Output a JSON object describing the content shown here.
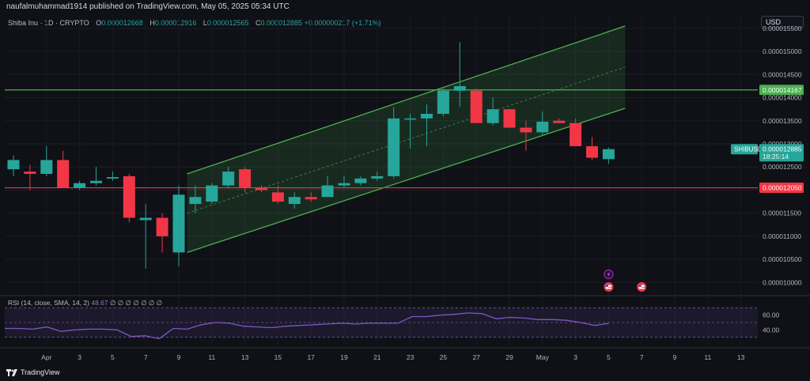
{
  "header": {
    "attribution": "naufalmuhammad1914 published on TradingView.com, May 05, 2025 05:34 UTC"
  },
  "legend": {
    "symbol": "Shiba Inu · 1D · CRYPTO",
    "open_label": "O",
    "open": "0.000012668",
    "high_label": "H",
    "high": "0.000012916",
    "low_label": "L",
    "low": "0.000012565",
    "close_label": "C",
    "close": "0.000012885",
    "change": "+0.000000217 (+1.71%)"
  },
  "currency_button": "USD",
  "rsi": {
    "label": "RSI (14, close, SMA, 14, 2)",
    "value": "48.67",
    "extras": "∅ ∅ ∅ ∅ ∅ ∅ ∅",
    "levels": [
      "60.00",
      "40.00"
    ],
    "values": [
      42,
      42,
      41,
      44,
      38,
      40,
      41,
      41,
      40,
      31,
      32,
      28,
      42,
      41,
      47,
      50,
      49,
      45,
      44,
      43,
      45,
      46,
      47,
      48,
      49,
      48,
      49,
      49,
      49,
      58,
      58,
      60,
      61,
      63,
      62,
      55,
      57,
      56,
      54,
      54,
      53,
      50,
      46,
      48.67
    ]
  },
  "brand": "TradingView",
  "colors": {
    "up": "#26a69a",
    "down": "#f23645",
    "channel": "#4caf50",
    "resistance": "#4caf50",
    "support": "#f23645",
    "rsi_line": "#7e57c2"
  },
  "chart_data": {
    "type": "candlestick",
    "symbol": "SHIBUSD",
    "timeframe": "1D",
    "ylim": [
      9.75e-06,
      1.56e-05
    ],
    "yticks": [
      "0.000015500",
      "0.000015000",
      "0.000014500",
      "0.000014000",
      "0.000013500",
      "0.000013000",
      "0.000012500",
      "0.000012000",
      "0.000011500",
      "0.000011000",
      "0.000010500",
      "0.000010000"
    ],
    "ytick_values": [
      1.55e-05,
      1.5e-05,
      1.45e-05,
      1.4e-05,
      1.35e-05,
      1.3e-05,
      1.25e-05,
      1.2e-05,
      1.15e-05,
      1.1e-05,
      1.05e-05,
      1e-05
    ],
    "x_labels": [
      {
        "i": 2,
        "label": "Apr"
      },
      {
        "i": 4,
        "label": "3"
      },
      {
        "i": 6,
        "label": "5"
      },
      {
        "i": 8,
        "label": "7"
      },
      {
        "i": 10,
        "label": "9"
      },
      {
        "i": 12,
        "label": "11"
      },
      {
        "i": 14,
        "label": "13"
      },
      {
        "i": 16,
        "label": "15"
      },
      {
        "i": 18,
        "label": "17"
      },
      {
        "i": 20,
        "label": "19"
      },
      {
        "i": 22,
        "label": "21"
      },
      {
        "i": 24,
        "label": "23"
      },
      {
        "i": 26,
        "label": "25"
      },
      {
        "i": 28,
        "label": "27"
      },
      {
        "i": 30,
        "label": "29"
      },
      {
        "i": 32,
        "label": "May"
      },
      {
        "i": 34,
        "label": "3"
      },
      {
        "i": 36,
        "label": "5"
      },
      {
        "i": 38,
        "label": "7"
      },
      {
        "i": 40,
        "label": "9"
      },
      {
        "i": 42,
        "label": "11"
      },
      {
        "i": 44,
        "label": "13"
      }
    ],
    "candles": [
      {
        "o": 12.45,
        "h": 12.75,
        "l": 12.3,
        "c": 12.65
      },
      {
        "o": 12.4,
        "h": 12.55,
        "l": 12.0,
        "c": 12.35
      },
      {
        "o": 12.35,
        "h": 12.95,
        "l": 12.3,
        "c": 12.65
      },
      {
        "o": 12.65,
        "h": 12.85,
        "l": 12.05,
        "c": 12.05
      },
      {
        "o": 12.05,
        "h": 12.2,
        "l": 12.0,
        "c": 12.15
      },
      {
        "o": 12.15,
        "h": 12.5,
        "l": 12.1,
        "c": 12.2
      },
      {
        "o": 12.25,
        "h": 12.4,
        "l": 12.2,
        "c": 12.28
      },
      {
        "o": 12.3,
        "h": 12.35,
        "l": 11.3,
        "c": 11.4
      },
      {
        "o": 11.35,
        "h": 11.7,
        "l": 10.3,
        "c": 11.4
      },
      {
        "o": 11.4,
        "h": 11.5,
        "l": 10.65,
        "c": 11.0
      },
      {
        "o": 10.65,
        "h": 12.1,
        "l": 10.35,
        "c": 11.9
      },
      {
        "o": 11.7,
        "h": 12.1,
        "l": 11.5,
        "c": 11.85
      },
      {
        "o": 11.75,
        "h": 12.15,
        "l": 11.7,
        "c": 12.1
      },
      {
        "o": 12.1,
        "h": 12.5,
        "l": 12.05,
        "c": 12.4
      },
      {
        "o": 12.45,
        "h": 12.5,
        "l": 11.95,
        "c": 12.05
      },
      {
        "o": 12.05,
        "h": 12.1,
        "l": 11.95,
        "c": 12.0
      },
      {
        "o": 11.95,
        "h": 12.1,
        "l": 11.7,
        "c": 11.75
      },
      {
        "o": 11.7,
        "h": 11.95,
        "l": 11.6,
        "c": 11.85
      },
      {
        "o": 11.85,
        "h": 11.95,
        "l": 11.75,
        "c": 11.8
      },
      {
        "o": 11.85,
        "h": 12.3,
        "l": 11.85,
        "c": 12.1
      },
      {
        "o": 12.1,
        "h": 12.3,
        "l": 12.05,
        "c": 12.15
      },
      {
        "o": 12.15,
        "h": 12.3,
        "l": 12.1,
        "c": 12.25
      },
      {
        "o": 12.25,
        "h": 12.4,
        "l": 12.2,
        "c": 12.3
      },
      {
        "o": 12.3,
        "h": 13.8,
        "l": 12.25,
        "c": 13.55
      },
      {
        "o": 13.55,
        "h": 13.65,
        "l": 12.9,
        "c": 13.55
      },
      {
        "o": 13.55,
        "h": 13.85,
        "l": 12.95,
        "c": 13.65
      },
      {
        "o": 13.65,
        "h": 14.2,
        "l": 13.6,
        "c": 14.15
      },
      {
        "o": 14.15,
        "h": 15.2,
        "l": 13.8,
        "c": 14.25
      },
      {
        "o": 14.15,
        "h": 14.2,
        "l": 13.45,
        "c": 13.45
      },
      {
        "o": 13.45,
        "h": 14.0,
        "l": 13.4,
        "c": 13.75
      },
      {
        "o": 13.75,
        "h": 13.75,
        "l": 13.35,
        "c": 13.35
      },
      {
        "o": 13.35,
        "h": 13.5,
        "l": 12.85,
        "c": 13.25
      },
      {
        "o": 13.25,
        "h": 13.7,
        "l": 13.2,
        "c": 13.48
      },
      {
        "o": 13.5,
        "h": 13.55,
        "l": 13.45,
        "c": 13.45
      },
      {
        "o": 13.45,
        "h": 13.55,
        "l": 12.95,
        "c": 12.95
      },
      {
        "o": 12.95,
        "h": 13.15,
        "l": 12.65,
        "c": 12.7
      },
      {
        "o": 12.67,
        "h": 12.92,
        "l": 12.57,
        "c": 12.885
      }
    ],
    "scale_note": "candle values in units of 1e-6 USD",
    "channel": {
      "lower": {
        "i0": 10.5,
        "v0": 10.65,
        "i1": 37,
        "v1": 13.77
      },
      "upper": {
        "i0": 10.5,
        "v0": 12.35,
        "i1": 37,
        "v1": 15.55
      }
    },
    "horizontal_lines": [
      {
        "label": "0.000014167",
        "value": 14.167,
        "color": "#4caf50"
      },
      {
        "label": "0.000012050",
        "value": 12.05,
        "color": "#f23645"
      }
    ],
    "last_price": {
      "symbol": "SHIBUSD",
      "label": "0.000012885",
      "countdown": "18:25:14",
      "value": 12.885
    },
    "event_markers": [
      {
        "i": 36,
        "kind": "flash-icon"
      },
      {
        "i": 36,
        "kind": "flag-icon"
      },
      {
        "i": 38,
        "kind": "flag-icon"
      }
    ]
  }
}
